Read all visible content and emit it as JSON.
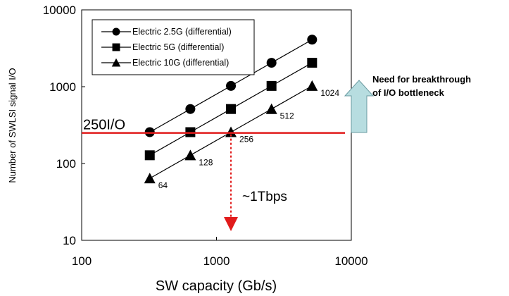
{
  "chart_data": {
    "type": "scatter",
    "x_scale": "log",
    "y_scale": "log",
    "xlim": [
      100,
      10000
    ],
    "ylim": [
      10,
      10000
    ],
    "x_ticks": [
      "100",
      "1000",
      "10000"
    ],
    "y_ticks": [
      "10",
      "100",
      "1000",
      "10000"
    ],
    "xlabel": "SW capacity (Gb/s)",
    "ylabel": "Number of SWLSI signal I/O",
    "grid": false,
    "legend_position": "top-left",
    "series": [
      {
        "name": "Electric 2.5G (differential)",
        "marker": "circle",
        "x": [
          320,
          640,
          1280,
          2560,
          5120
        ],
        "y": [
          256,
          512,
          1024,
          2048,
          4096
        ]
      },
      {
        "name": "Electric 5G (differential)",
        "marker": "square",
        "x": [
          320,
          640,
          1280,
          2560,
          5120
        ],
        "y": [
          128,
          256,
          512,
          1024,
          2048
        ]
      },
      {
        "name": "Electric 10G (differential)",
        "marker": "triangle",
        "x": [
          320,
          640,
          1280,
          2560,
          5120
        ],
        "y": [
          64,
          128,
          256,
          512,
          1024
        ],
        "point_labels": [
          "64",
          "128",
          "256",
          "512",
          "1024"
        ]
      }
    ],
    "threshold": {
      "label": "250I/O",
      "y": 250,
      "color": "#e11b1b"
    },
    "capacity_marker": {
      "label": "~1Tbps",
      "x": 1280,
      "color": "#e11b1b"
    },
    "callout": {
      "lines": [
        "Need for breakthrough",
        "of I/O bottleneck"
      ],
      "arrow_color": "#b7dde0"
    }
  }
}
